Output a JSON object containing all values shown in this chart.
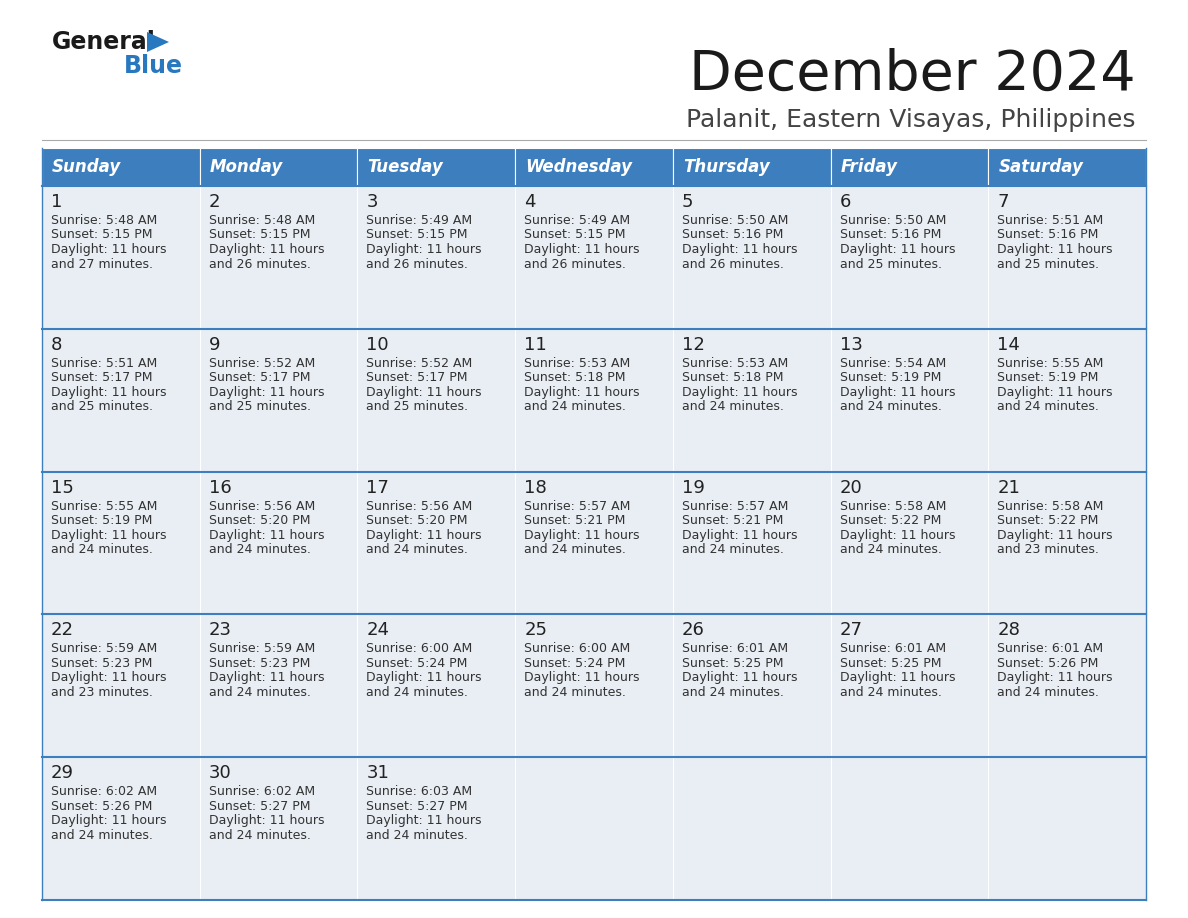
{
  "title": "December 2024",
  "subtitle": "Palanit, Eastern Visayas, Philippines",
  "days_of_week": [
    "Sunday",
    "Monday",
    "Tuesday",
    "Wednesday",
    "Thursday",
    "Friday",
    "Saturday"
  ],
  "header_bg": "#3d7ebf",
  "header_text": "#ffffff",
  "row_bg": "#e8eef4",
  "cell_border_color": "#3d7ebf",
  "day_num_color": "#222222",
  "text_color": "#333333",
  "title_color": "#1a1a1a",
  "subtitle_color": "#444444",
  "logo_general_color": "#1a1a1a",
  "logo_blue_color": "#2878c0",
  "weeks": [
    [
      {
        "day": 1,
        "sunrise": "5:48 AM",
        "sunset": "5:15 PM",
        "daylight_min": "27"
      },
      {
        "day": 2,
        "sunrise": "5:48 AM",
        "sunset": "5:15 PM",
        "daylight_min": "26"
      },
      {
        "day": 3,
        "sunrise": "5:49 AM",
        "sunset": "5:15 PM",
        "daylight_min": "26"
      },
      {
        "day": 4,
        "sunrise": "5:49 AM",
        "sunset": "5:15 PM",
        "daylight_min": "26"
      },
      {
        "day": 5,
        "sunrise": "5:50 AM",
        "sunset": "5:16 PM",
        "daylight_min": "26"
      },
      {
        "day": 6,
        "sunrise": "5:50 AM",
        "sunset": "5:16 PM",
        "daylight_min": "25"
      },
      {
        "day": 7,
        "sunrise": "5:51 AM",
        "sunset": "5:16 PM",
        "daylight_min": "25"
      }
    ],
    [
      {
        "day": 8,
        "sunrise": "5:51 AM",
        "sunset": "5:17 PM",
        "daylight_min": "25"
      },
      {
        "day": 9,
        "sunrise": "5:52 AM",
        "sunset": "5:17 PM",
        "daylight_min": "25"
      },
      {
        "day": 10,
        "sunrise": "5:52 AM",
        "sunset": "5:17 PM",
        "daylight_min": "25"
      },
      {
        "day": 11,
        "sunrise": "5:53 AM",
        "sunset": "5:18 PM",
        "daylight_min": "24"
      },
      {
        "day": 12,
        "sunrise": "5:53 AM",
        "sunset": "5:18 PM",
        "daylight_min": "24"
      },
      {
        "day": 13,
        "sunrise": "5:54 AM",
        "sunset": "5:19 PM",
        "daylight_min": "24"
      },
      {
        "day": 14,
        "sunrise": "5:55 AM",
        "sunset": "5:19 PM",
        "daylight_min": "24"
      }
    ],
    [
      {
        "day": 15,
        "sunrise": "5:55 AM",
        "sunset": "5:19 PM",
        "daylight_min": "24"
      },
      {
        "day": 16,
        "sunrise": "5:56 AM",
        "sunset": "5:20 PM",
        "daylight_min": "24"
      },
      {
        "day": 17,
        "sunrise": "5:56 AM",
        "sunset": "5:20 PM",
        "daylight_min": "24"
      },
      {
        "day": 18,
        "sunrise": "5:57 AM",
        "sunset": "5:21 PM",
        "daylight_min": "24"
      },
      {
        "day": 19,
        "sunrise": "5:57 AM",
        "sunset": "5:21 PM",
        "daylight_min": "24"
      },
      {
        "day": 20,
        "sunrise": "5:58 AM",
        "sunset": "5:22 PM",
        "daylight_min": "24"
      },
      {
        "day": 21,
        "sunrise": "5:58 AM",
        "sunset": "5:22 PM",
        "daylight_min": "23"
      }
    ],
    [
      {
        "day": 22,
        "sunrise": "5:59 AM",
        "sunset": "5:23 PM",
        "daylight_min": "23"
      },
      {
        "day": 23,
        "sunrise": "5:59 AM",
        "sunset": "5:23 PM",
        "daylight_min": "24"
      },
      {
        "day": 24,
        "sunrise": "6:00 AM",
        "sunset": "5:24 PM",
        "daylight_min": "24"
      },
      {
        "day": 25,
        "sunrise": "6:00 AM",
        "sunset": "5:24 PM",
        "daylight_min": "24"
      },
      {
        "day": 26,
        "sunrise": "6:01 AM",
        "sunset": "5:25 PM",
        "daylight_min": "24"
      },
      {
        "day": 27,
        "sunrise": "6:01 AM",
        "sunset": "5:25 PM",
        "daylight_min": "24"
      },
      {
        "day": 28,
        "sunrise": "6:01 AM",
        "sunset": "5:26 PM",
        "daylight_min": "24"
      }
    ],
    [
      {
        "day": 29,
        "sunrise": "6:02 AM",
        "sunset": "5:26 PM",
        "daylight_min": "24"
      },
      {
        "day": 30,
        "sunrise": "6:02 AM",
        "sunset": "5:27 PM",
        "daylight_min": "24"
      },
      {
        "day": 31,
        "sunrise": "6:03 AM",
        "sunset": "5:27 PM",
        "daylight_min": "24"
      },
      null,
      null,
      null,
      null
    ]
  ]
}
